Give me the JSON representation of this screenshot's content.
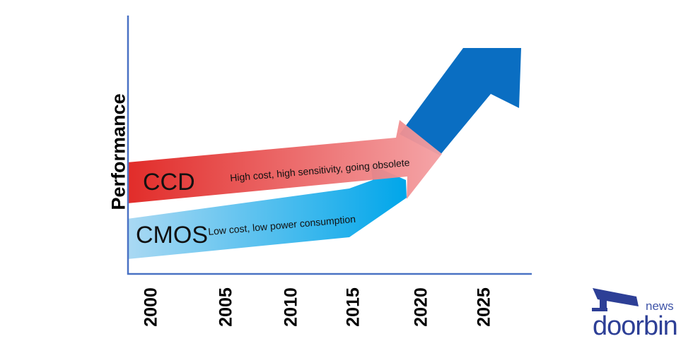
{
  "axis": {
    "ylabel": "Performance"
  },
  "years": [
    "2000",
    "2005",
    "2010",
    "2015",
    "2020",
    "2025"
  ],
  "arrows": {
    "ccd": {
      "name": "CCD",
      "description": "High cost, high sensitivity, going obsolete",
      "color_start": "#e0211e",
      "color_end": "#f4a0a3"
    },
    "cmos": {
      "name": "CMOS",
      "description": "Low cost, low power consumption",
      "color_start": "#aad9f3",
      "color_end": "#00a6ea"
    },
    "future": {
      "color": "#0a6ec2"
    }
  },
  "logo": {
    "top": "news",
    "word": "doorbin",
    "color": "#2d3f96"
  }
}
